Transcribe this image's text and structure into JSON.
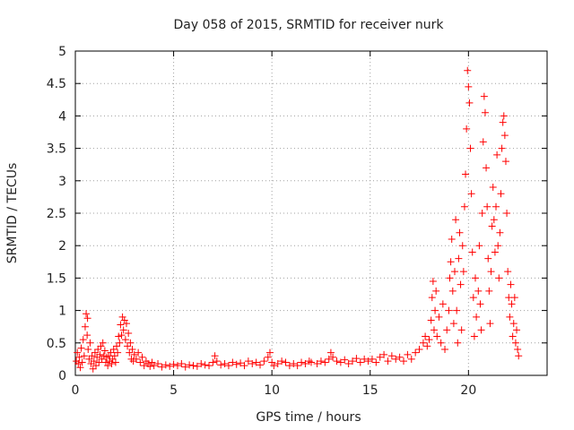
{
  "chart_data": {
    "type": "scatter",
    "title": "Day 058 of 2015, SRMTID for receiver nurk",
    "xlabel": "GPS time / hours",
    "ylabel": "SRMTID / TECUs",
    "xlim": [
      0,
      24
    ],
    "ylim": [
      0,
      5
    ],
    "xticks": [
      0,
      5,
      10,
      15,
      20
    ],
    "xtick_labels": [
      "0",
      "5",
      "10",
      "15",
      "20"
    ],
    "yticks": [
      0,
      0.5,
      1,
      1.5,
      2,
      2.5,
      3,
      3.5,
      4,
      4.5,
      5
    ],
    "ytick_labels": [
      "0",
      "0.5",
      "1",
      "1.5",
      "2",
      "2.5",
      "3",
      "3.5",
      "4",
      "4.5",
      "5"
    ],
    "grid": true,
    "marker": "+",
    "marker_color": "#ff0000",
    "series": [
      {
        "name": "SRMTID",
        "points": [
          [
            0.05,
            0.22
          ],
          [
            0.1,
            0.35
          ],
          [
            0.15,
            0.18
          ],
          [
            0.2,
            0.28
          ],
          [
            0.25,
            0.12
          ],
          [
            0.3,
            0.42
          ],
          [
            0.35,
            0.2
          ],
          [
            0.4,
            0.55
          ],
          [
            0.45,
            0.3
          ],
          [
            0.5,
            0.75
          ],
          [
            0.55,
            0.95
          ],
          [
            0.6,
            0.62
          ],
          [
            0.62,
            0.88
          ],
          [
            0.65,
            0.4
          ],
          [
            0.7,
            0.25
          ],
          [
            0.75,
            0.5
          ],
          [
            0.8,
            0.18
          ],
          [
            0.85,
            0.3
          ],
          [
            0.9,
            0.1
          ],
          [
            0.95,
            0.22
          ],
          [
            1.0,
            0.35
          ],
          [
            1.05,
            0.15
          ],
          [
            1.1,
            0.28
          ],
          [
            1.15,
            0.4
          ],
          [
            1.2,
            0.2
          ],
          [
            1.25,
            0.32
          ],
          [
            1.3,
            0.45
          ],
          [
            1.35,
            0.25
          ],
          [
            1.4,
            0.5
          ],
          [
            1.45,
            0.3
          ],
          [
            1.5,
            0.38
          ],
          [
            1.55,
            0.2
          ],
          [
            1.6,
            0.28
          ],
          [
            1.65,
            0.15
          ],
          [
            1.7,
            0.3
          ],
          [
            1.75,
            0.22
          ],
          [
            1.8,
            0.35
          ],
          [
            1.85,
            0.18
          ],
          [
            1.9,
            0.25
          ],
          [
            1.95,
            0.4
          ],
          [
            2.0,
            0.3
          ],
          [
            2.05,
            0.2
          ],
          [
            2.1,
            0.45
          ],
          [
            2.15,
            0.35
          ],
          [
            2.2,
            0.6
          ],
          [
            2.25,
            0.5
          ],
          [
            2.3,
            0.78
          ],
          [
            2.35,
            0.62
          ],
          [
            2.4,
            0.9
          ],
          [
            2.45,
            0.7
          ],
          [
            2.5,
            0.85
          ],
          [
            2.55,
            0.55
          ],
          [
            2.6,
            0.8
          ],
          [
            2.65,
            0.45
          ],
          [
            2.7,
            0.65
          ],
          [
            2.75,
            0.35
          ],
          [
            2.8,
            0.5
          ],
          [
            2.85,
            0.25
          ],
          [
            2.9,
            0.4
          ],
          [
            2.95,
            0.22
          ],
          [
            3.0,
            0.32
          ],
          [
            3.1,
            0.25
          ],
          [
            3.2,
            0.35
          ],
          [
            3.3,
            0.2
          ],
          [
            3.4,
            0.28
          ],
          [
            3.5,
            0.15
          ],
          [
            3.6,
            0.22
          ],
          [
            3.7,
            0.18
          ],
          [
            3.8,
            0.14
          ],
          [
            3.9,
            0.2
          ],
          [
            4.0,
            0.15
          ],
          [
            4.2,
            0.18
          ],
          [
            4.4,
            0.13
          ],
          [
            4.6,
            0.16
          ],
          [
            4.8,
            0.14
          ],
          [
            5.0,
            0.17
          ],
          [
            5.2,
            0.15
          ],
          [
            5.4,
            0.18
          ],
          [
            5.6,
            0.13
          ],
          [
            5.8,
            0.16
          ],
          [
            6.0,
            0.15
          ],
          [
            6.2,
            0.14
          ],
          [
            6.4,
            0.18
          ],
          [
            6.6,
            0.16
          ],
          [
            6.8,
            0.15
          ],
          [
            7.0,
            0.2
          ],
          [
            7.1,
            0.3
          ],
          [
            7.2,
            0.22
          ],
          [
            7.4,
            0.16
          ],
          [
            7.6,
            0.18
          ],
          [
            7.8,
            0.15
          ],
          [
            8.0,
            0.2
          ],
          [
            8.2,
            0.17
          ],
          [
            8.4,
            0.19
          ],
          [
            8.6,
            0.15
          ],
          [
            8.8,
            0.22
          ],
          [
            9.0,
            0.18
          ],
          [
            9.2,
            0.2
          ],
          [
            9.4,
            0.16
          ],
          [
            9.6,
            0.22
          ],
          [
            9.8,
            0.28
          ],
          [
            9.9,
            0.35
          ],
          [
            10.0,
            0.2
          ],
          [
            10.1,
            0.15
          ],
          [
            10.3,
            0.18
          ],
          [
            10.5,
            0.22
          ],
          [
            10.7,
            0.2
          ],
          [
            10.9,
            0.15
          ],
          [
            11.1,
            0.18
          ],
          [
            11.3,
            0.15
          ],
          [
            11.5,
            0.2
          ],
          [
            11.7,
            0.18
          ],
          [
            11.9,
            0.22
          ],
          [
            12.0,
            0.2
          ],
          [
            12.3,
            0.18
          ],
          [
            12.5,
            0.22
          ],
          [
            12.7,
            0.2
          ],
          [
            12.9,
            0.25
          ],
          [
            13.0,
            0.35
          ],
          [
            13.1,
            0.28
          ],
          [
            13.3,
            0.22
          ],
          [
            13.5,
            0.2
          ],
          [
            13.7,
            0.24
          ],
          [
            13.9,
            0.18
          ],
          [
            14.1,
            0.22
          ],
          [
            14.3,
            0.26
          ],
          [
            14.5,
            0.2
          ],
          [
            14.7,
            0.25
          ],
          [
            14.9,
            0.22
          ],
          [
            15.1,
            0.25
          ],
          [
            15.3,
            0.2
          ],
          [
            15.5,
            0.28
          ],
          [
            15.7,
            0.32
          ],
          [
            15.9,
            0.22
          ],
          [
            16.1,
            0.3
          ],
          [
            16.3,
            0.25
          ],
          [
            16.5,
            0.28
          ],
          [
            16.7,
            0.22
          ],
          [
            16.9,
            0.32
          ],
          [
            17.1,
            0.25
          ],
          [
            17.3,
            0.35
          ],
          [
            17.5,
            0.4
          ],
          [
            17.7,
            0.5
          ],
          [
            17.8,
            0.6
          ],
          [
            17.9,
            0.45
          ],
          [
            18.0,
            0.55
          ],
          [
            18.1,
            0.85
          ],
          [
            18.15,
            1.2
          ],
          [
            18.2,
            1.45
          ],
          [
            18.25,
            0.7
          ],
          [
            18.3,
            1.0
          ],
          [
            18.35,
            1.3
          ],
          [
            18.4,
            0.6
          ],
          [
            18.5,
            0.9
          ],
          [
            18.6,
            0.5
          ],
          [
            18.7,
            1.1
          ],
          [
            18.8,
            0.4
          ],
          [
            18.9,
            0.7
          ],
          [
            19.0,
            1.0
          ],
          [
            19.05,
            1.5
          ],
          [
            19.1,
            1.75
          ],
          [
            19.15,
            2.1
          ],
          [
            19.2,
            1.3
          ],
          [
            19.25,
            0.8
          ],
          [
            19.3,
            1.6
          ],
          [
            19.35,
            2.4
          ],
          [
            19.4,
            1.0
          ],
          [
            19.45,
            0.5
          ],
          [
            19.5,
            1.8
          ],
          [
            19.55,
            2.2
          ],
          [
            19.6,
            1.4
          ],
          [
            19.65,
            0.7
          ],
          [
            19.7,
            2.0
          ],
          [
            19.75,
            1.6
          ],
          [
            19.8,
            2.6
          ],
          [
            19.85,
            3.1
          ],
          [
            19.9,
            3.8
          ],
          [
            19.95,
            4.7
          ],
          [
            20.0,
            4.45
          ],
          [
            20.05,
            4.2
          ],
          [
            20.1,
            3.5
          ],
          [
            20.15,
            2.8
          ],
          [
            20.2,
            1.9
          ],
          [
            20.25,
            1.2
          ],
          [
            20.3,
            0.6
          ],
          [
            20.35,
            1.5
          ],
          [
            20.4,
            0.9
          ],
          [
            20.5,
            1.3
          ],
          [
            20.55,
            2.0
          ],
          [
            20.6,
            1.1
          ],
          [
            20.65,
            0.7
          ],
          [
            20.7,
            2.5
          ],
          [
            20.75,
            3.6
          ],
          [
            20.8,
            4.3
          ],
          [
            20.85,
            4.05
          ],
          [
            20.9,
            3.2
          ],
          [
            20.95,
            2.6
          ],
          [
            21.0,
            1.8
          ],
          [
            21.05,
            1.3
          ],
          [
            21.1,
            0.8
          ],
          [
            21.15,
            1.6
          ],
          [
            21.2,
            2.3
          ],
          [
            21.25,
            2.9
          ],
          [
            21.3,
            2.4
          ],
          [
            21.35,
            1.9
          ],
          [
            21.4,
            2.6
          ],
          [
            21.45,
            3.4
          ],
          [
            21.5,
            2.0
          ],
          [
            21.55,
            1.5
          ],
          [
            21.6,
            2.2
          ],
          [
            21.65,
            2.8
          ],
          [
            21.7,
            3.5
          ],
          [
            21.75,
            3.9
          ],
          [
            21.8,
            4.0
          ],
          [
            21.85,
            3.7
          ],
          [
            21.9,
            3.3
          ],
          [
            21.95,
            2.5
          ],
          [
            22.0,
            1.6
          ],
          [
            22.05,
            1.2
          ],
          [
            22.1,
            0.9
          ],
          [
            22.15,
            1.4
          ],
          [
            22.2,
            1.1
          ],
          [
            22.25,
            0.6
          ],
          [
            22.3,
            0.8
          ],
          [
            22.35,
            1.2
          ],
          [
            22.4,
            0.5
          ],
          [
            22.45,
            0.7
          ],
          [
            22.5,
            0.4
          ],
          [
            22.55,
            0.3
          ]
        ]
      }
    ]
  }
}
